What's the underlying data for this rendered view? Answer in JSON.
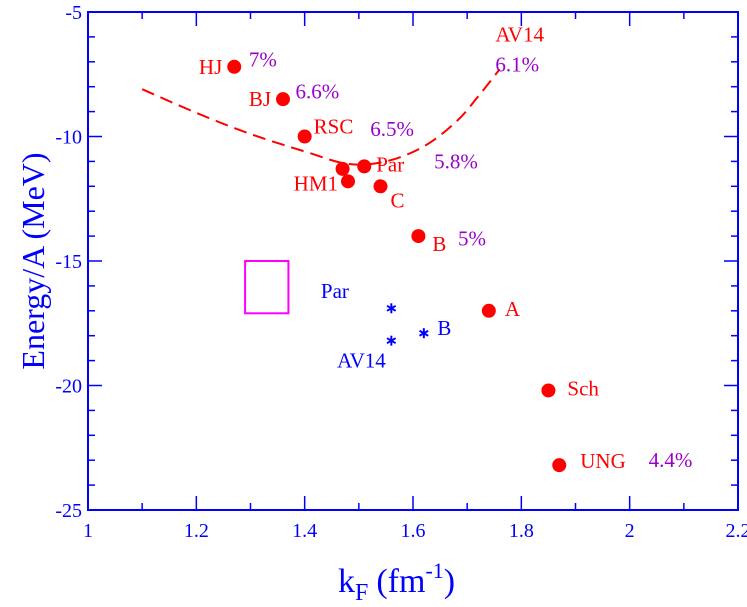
{
  "chart_data": {
    "type": "scatter",
    "xlabel": "k",
    "xlabel_sub": "F",
    "xlabel_unit": "(fm",
    "xlabel_sup": "-1",
    "xlabel_close": ")",
    "ylabel": "Energy/A  (MeV)",
    "xlim": [
      1,
      2.2
    ],
    "ylim": [
      -25,
      -5
    ],
    "x_ticks": [
      "1",
      "1.2",
      "1.4",
      "1.6",
      "1.8",
      "2",
      "2.2"
    ],
    "y_ticks": [
      "-5",
      "-10",
      "-15",
      "-20",
      "-25"
    ],
    "colors": {
      "axis": "#0000ff",
      "red": "#ff0000",
      "purple": "#9900cc",
      "blue": "#0000ff",
      "box": "#ff00ff"
    },
    "red_points": [
      {
        "name": "HJ",
        "x": 1.27,
        "y": -7.2
      },
      {
        "name": "BJ",
        "x": 1.36,
        "y": -8.5
      },
      {
        "name": "RSC",
        "x": 1.4,
        "y": -10.0
      },
      {
        "name": "Par",
        "x": 1.51,
        "y": -11.2
      },
      {
        "name": "",
        "x": 1.47,
        "y": -11.3
      },
      {
        "name": "HM1",
        "x": 1.48,
        "y": -11.8
      },
      {
        "name": "C",
        "x": 1.54,
        "y": -12.0
      },
      {
        "name": "B",
        "x": 1.61,
        "y": -14.0
      },
      {
        "name": "A",
        "x": 1.74,
        "y": -17.0
      },
      {
        "name": "Sch",
        "x": 1.85,
        "y": -20.2
      },
      {
        "name": "UNG",
        "x": 1.87,
        "y": -23.2
      }
    ],
    "percent_labels": [
      {
        "text": "7%",
        "x": 1.297,
        "y": -6.9
      },
      {
        "text": "6.6%",
        "x": 1.383,
        "y": -8.2
      },
      {
        "text": "6.5%",
        "x": 1.521,
        "y": -9.7
      },
      {
        "text": "5.8%",
        "x": 1.639,
        "y": -11.0
      },
      {
        "text": "5%",
        "x": 1.683,
        "y": -14.1
      },
      {
        "text": "6.1%",
        "x": 1.752,
        "y": -7.1
      },
      {
        "text": "4.4%",
        "x": 2.035,
        "y": -23.0
      }
    ],
    "curve_label": {
      "text": "AV14",
      "x": 1.752,
      "y": -5.9
    },
    "curve": [
      {
        "x": 1.1,
        "y": -8.1
      },
      {
        "x": 1.2,
        "y": -9.05
      },
      {
        "x": 1.3,
        "y": -9.9
      },
      {
        "x": 1.4,
        "y": -10.6
      },
      {
        "x": 1.48,
        "y": -11.1
      },
      {
        "x": 1.55,
        "y": -11.0
      },
      {
        "x": 1.62,
        "y": -10.4
      },
      {
        "x": 1.68,
        "y": -9.4
      },
      {
        "x": 1.72,
        "y": -8.4
      },
      {
        "x": 1.76,
        "y": -7.3
      }
    ],
    "blue_points": [
      {
        "x": 1.56,
        "y": -16.9
      },
      {
        "x": 1.56,
        "y": -18.2
      },
      {
        "x": 1.62,
        "y": -17.9
      }
    ],
    "blue_labels": [
      {
        "text": "Par",
        "x": 1.43,
        "y": -16.2
      },
      {
        "text": "B",
        "x": 1.645,
        "y": -17.7
      },
      {
        "text": "AV14",
        "x": 1.46,
        "y": -19.0
      }
    ],
    "box": {
      "x0": 1.29,
      "x1": 1.37,
      "y0": -17.1,
      "y1": -15.0
    }
  }
}
